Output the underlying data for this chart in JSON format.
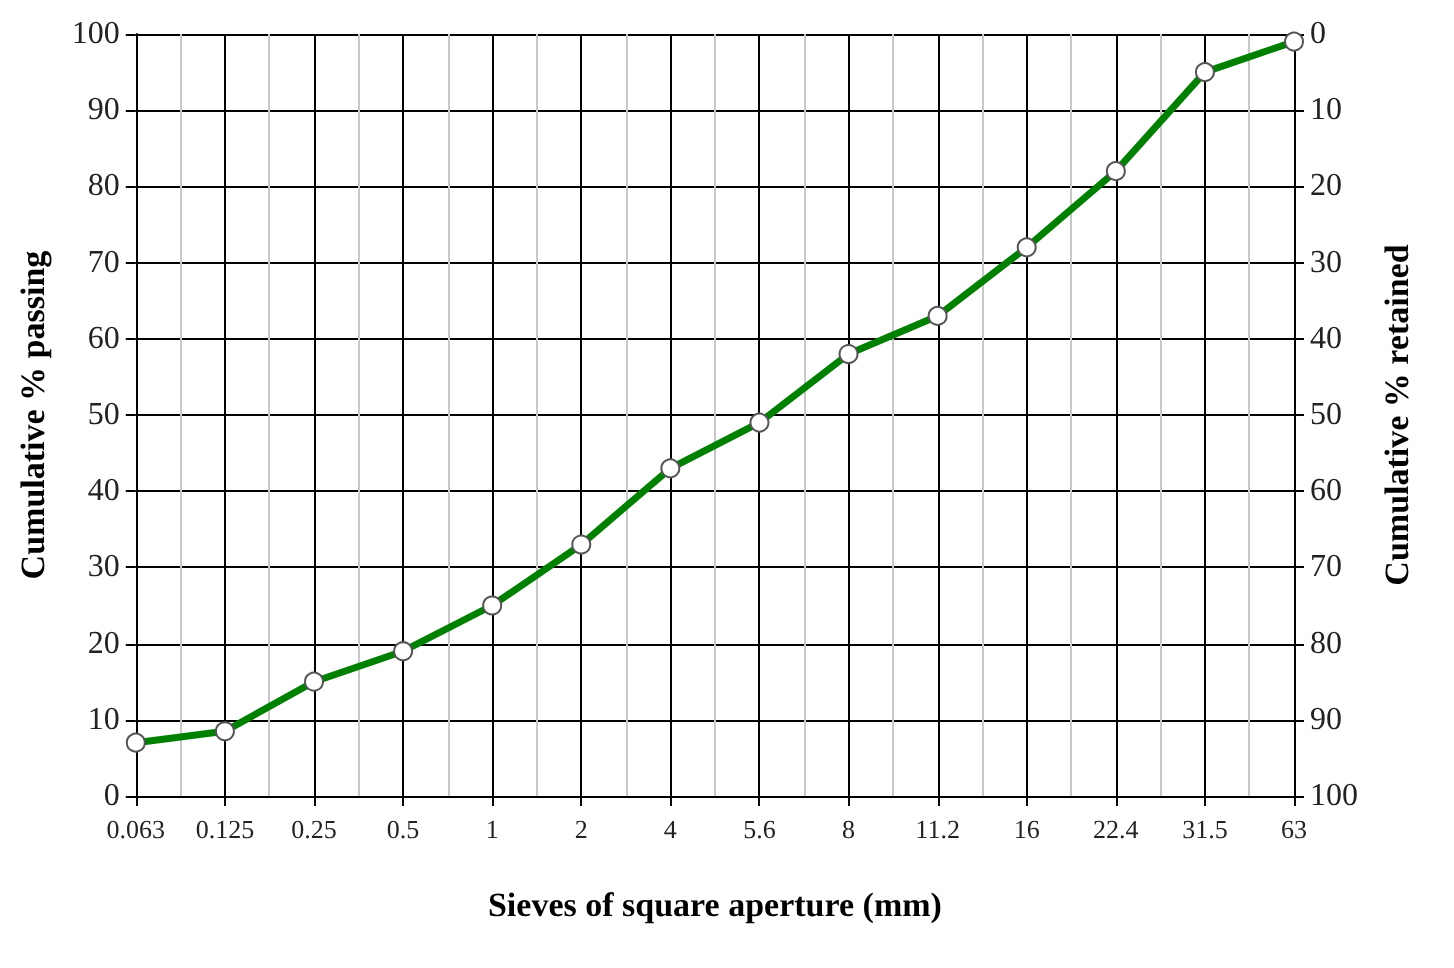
{
  "chart_data": {
    "type": "line",
    "xlabel": "Sieves of square aperture (mm)",
    "ylabel": "Cumulative % passing",
    "y2label": "Cumulative % retained",
    "categories": [
      "0.063",
      "0.125",
      "0.25",
      "0.5",
      "1",
      "2",
      "4",
      "5.6",
      "8",
      "11.2",
      "16",
      "22.4",
      "31.5",
      "63"
    ],
    "series": [
      {
        "color": "#008000",
        "values": [
          7,
          8.5,
          15,
          19,
          25,
          33,
          43,
          49,
          58,
          63,
          72,
          82,
          95,
          99
        ]
      }
    ],
    "ylim": [
      0,
      100
    ],
    "yticks": [
      0,
      10,
      20,
      30,
      40,
      50,
      60,
      70,
      80,
      90,
      100
    ],
    "y2lim": [
      100,
      0
    ],
    "y2ticks": [
      0,
      10,
      20,
      30,
      40,
      50,
      60,
      70,
      80,
      90,
      100
    ],
    "grid": true,
    "marker": "circle",
    "line_style": "solid"
  }
}
